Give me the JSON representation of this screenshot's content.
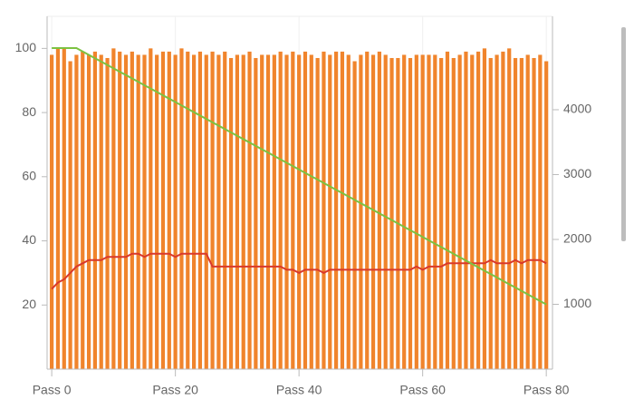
{
  "chart_data": {
    "type": "bar-line",
    "x": [
      0,
      1,
      2,
      3,
      4,
      5,
      6,
      7,
      8,
      9,
      10,
      11,
      12,
      13,
      14,
      15,
      16,
      17,
      18,
      19,
      20,
      21,
      22,
      23,
      24,
      25,
      26,
      27,
      28,
      29,
      30,
      31,
      32,
      33,
      34,
      35,
      36,
      37,
      38,
      39,
      40,
      41,
      42,
      43,
      44,
      45,
      46,
      47,
      48,
      49,
      50,
      51,
      52,
      53,
      54,
      55,
      56,
      57,
      58,
      59,
      60,
      61,
      62,
      63,
      64,
      65,
      66,
      67,
      68,
      69,
      70,
      71,
      72,
      73,
      74,
      75,
      76,
      77,
      78,
      79,
      80
    ],
    "series": [
      {
        "type": "bar",
        "color": "#f0842c",
        "values": [
          98,
          100,
          100,
          96,
          98,
          99,
          98,
          99,
          98,
          97,
          100,
          99,
          98,
          99,
          98,
          98,
          100,
          98,
          99,
          99,
          98,
          100,
          99,
          98,
          99,
          98,
          99,
          98,
          99,
          97,
          98,
          98,
          99,
          97,
          98,
          98,
          98,
          99,
          98,
          99,
          98,
          99,
          98,
          97,
          99,
          98,
          99,
          99,
          98,
          96,
          98,
          99,
          98,
          99,
          98,
          97,
          97,
          98,
          97,
          98,
          98,
          98,
          98,
          97,
          99,
          97,
          98,
          99,
          98,
          99,
          100,
          97,
          98,
          99,
          100,
          97,
          97,
          98,
          97,
          98,
          96
        ]
      },
      {
        "type": "line",
        "color": "#d9392b",
        "values": [
          25,
          27,
          28,
          30,
          32,
          33,
          34,
          34,
          34,
          35,
          35,
          35,
          35,
          36,
          36,
          35,
          36,
          36,
          36,
          36,
          35,
          36,
          36,
          36,
          36,
          36,
          32,
          32,
          32,
          32,
          32,
          32,
          32,
          32,
          32,
          32,
          32,
          32,
          31,
          31,
          30,
          31,
          31,
          31,
          30,
          31,
          31,
          31,
          31,
          31,
          31,
          31,
          31,
          31,
          31,
          31,
          31,
          31,
          31,
          32,
          31,
          32,
          32,
          32,
          33,
          33,
          33,
          33,
          33,
          33,
          33,
          34,
          33,
          33,
          33,
          34,
          33,
          34,
          34,
          34,
          33
        ]
      },
      {
        "type": "line",
        "axis": "y2",
        "color": "#7cc242",
        "values": [
          4950,
          4950,
          4950,
          4950,
          4950,
          4898,
          4846,
          4794,
          4742,
          4690,
          4638,
          4586,
          4534,
          4482,
          4430,
          4378,
          4326,
          4274,
          4222,
          4170,
          4118,
          4066,
          4014,
          3962,
          3910,
          3858,
          3806,
          3754,
          3702,
          3650,
          3598,
          3546,
          3494,
          3442,
          3390,
          3338,
          3286,
          3234,
          3182,
          3130,
          3078,
          3026,
          2974,
          2922,
          2870,
          2818,
          2766,
          2714,
          2662,
          2610,
          2558,
          2506,
          2454,
          2402,
          2350,
          2298,
          2246,
          2194,
          2142,
          2090,
          2038,
          1986,
          1934,
          1882,
          1830,
          1778,
          1726,
          1674,
          1622,
          1570,
          1518,
          1466,
          1414,
          1362,
          1310,
          1258,
          1206,
          1154,
          1102,
          1050,
          998
        ]
      }
    ],
    "xlim": [
      -0.75,
      81
    ],
    "xticks": [
      {
        "value": 0,
        "label": "Pass 0"
      },
      {
        "value": 20,
        "label": "Pass 20"
      },
      {
        "value": 40,
        "label": "Pass 40"
      },
      {
        "value": 60,
        "label": "Pass 60"
      },
      {
        "value": 80,
        "label": "Pass 80"
      }
    ],
    "ylim": [
      0,
      110
    ],
    "yticks": [
      20,
      40,
      60,
      80,
      100
    ],
    "y2lim": [
      0,
      5440
    ],
    "y2ticks": [
      1000,
      2000,
      3000,
      4000
    ]
  }
}
